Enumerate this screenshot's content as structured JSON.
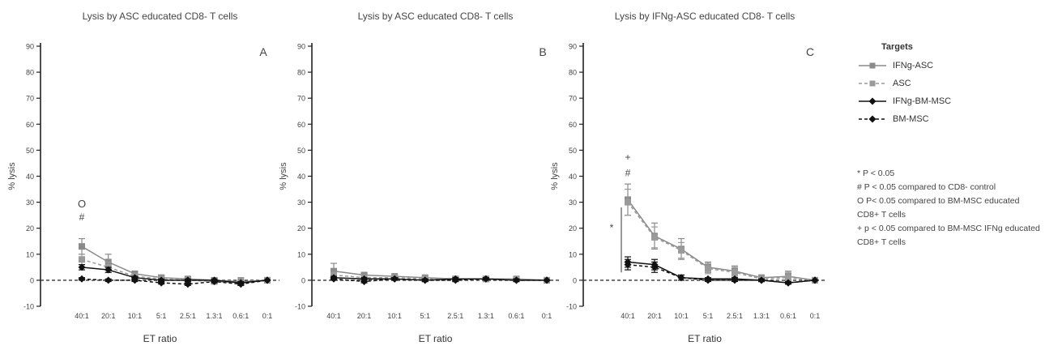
{
  "chart_data": [
    {
      "type": "line",
      "panel_letter": "A",
      "title": "Lysis by ASC educated CD8- T cells",
      "xlabel": "ET ratio",
      "ylabel": "% lysis",
      "categories": [
        "40:1",
        "20:1",
        "10:1",
        "5:1",
        "2.5:1",
        "1.3:1",
        "0.6:1",
        "0:1"
      ],
      "ylim": [
        -10,
        90
      ],
      "yticks": [
        -10,
        0,
        10,
        20,
        30,
        40,
        50,
        60,
        70,
        80,
        90
      ],
      "series": [
        {
          "name": "IFNg-ASC",
          "values": [
            13,
            7,
            2.5,
            1,
            0.5,
            0,
            -0.5,
            0
          ],
          "errors": [
            3,
            3,
            1,
            1,
            1,
            1,
            1.5,
            0
          ]
        },
        {
          "name": "ASC",
          "values": [
            8,
            5,
            1.5,
            0.5,
            0,
            -0.5,
            -1,
            0
          ],
          "errors": [
            2,
            2,
            1,
            1,
            1,
            1,
            1,
            0
          ]
        },
        {
          "name": "IFNg-BM-MSC",
          "values": [
            5,
            4,
            1,
            0,
            0,
            0,
            -1,
            0
          ],
          "errors": [
            1,
            1,
            0.5,
            0.5,
            0.5,
            0.5,
            0.5,
            0
          ]
        },
        {
          "name": "BM-MSC",
          "values": [
            0.5,
            0,
            0,
            -1,
            -1.5,
            -0.5,
            -1.5,
            0
          ],
          "errors": [
            0.5,
            0.5,
            0.5,
            0.5,
            0.5,
            0.5,
            0.5,
            0
          ]
        }
      ],
      "annotations": [
        {
          "text": "O",
          "category": "40:1",
          "y": 28
        },
        {
          "text": "#",
          "category": "40:1",
          "y": 23
        }
      ]
    },
    {
      "type": "line",
      "panel_letter": "B",
      "title": "Lysis by ASC educated CD8- T cells",
      "xlabel": "ET ratio",
      "ylabel": "% lysis",
      "categories": [
        "40:1",
        "20:1",
        "10:1",
        "5:1",
        "2.5:1",
        "1.3:1",
        "0.6:1",
        "0:1"
      ],
      "ylim": [
        -10,
        90
      ],
      "yticks": [
        -10,
        0,
        10,
        20,
        30,
        40,
        50,
        60,
        70,
        80,
        90
      ],
      "series": [
        {
          "name": "IFNg-ASC",
          "values": [
            3.5,
            2,
            1.5,
            1,
            0.5,
            0.5,
            0.5,
            0
          ],
          "errors": [
            3,
            1,
            0.5,
            0.5,
            0.5,
            0.5,
            0.5,
            0
          ]
        },
        {
          "name": "ASC",
          "values": [
            2,
            1,
            1,
            0.5,
            0.5,
            0.5,
            0.5,
            0
          ],
          "errors": [
            1,
            1,
            0.5,
            0.5,
            0.5,
            0.5,
            0.5,
            0
          ]
        },
        {
          "name": "IFNg-BM-MSC",
          "values": [
            1,
            0.5,
            0.5,
            0,
            0.5,
            0.5,
            0,
            0
          ],
          "errors": [
            0.5,
            0.5,
            0.5,
            0.5,
            0.5,
            0.5,
            0.5,
            0
          ]
        },
        {
          "name": "BM-MSC",
          "values": [
            0.5,
            -0.5,
            0.5,
            0,
            0,
            0.5,
            0,
            0
          ],
          "errors": [
            0.5,
            0.5,
            0.5,
            0.5,
            0.5,
            0.5,
            0.5,
            0
          ]
        }
      ],
      "annotations": []
    },
    {
      "type": "line",
      "panel_letter": "C",
      "title": "Lysis by IFNg-ASC educated CD8- T cells",
      "xlabel": "ET ratio",
      "ylabel": "% lysis",
      "categories": [
        "40:1",
        "20:1",
        "10:1",
        "5:1",
        "2.5:1",
        "1.3:1",
        "0.6:1",
        "0:1"
      ],
      "ylim": [
        -10,
        90
      ],
      "yticks": [
        -10,
        0,
        10,
        20,
        30,
        40,
        50,
        60,
        70,
        80,
        90
      ],
      "series": [
        {
          "name": "IFNg-ASC",
          "values": [
            31,
            17,
            12,
            5,
            3.5,
            1,
            1.5,
            0
          ],
          "errors": [
            6,
            5,
            4,
            2,
            2,
            1,
            2,
            0
          ]
        },
        {
          "name": "ASC",
          "values": [
            30,
            16.5,
            11.5,
            4.5,
            3,
            0.5,
            1,
            0
          ],
          "errors": [
            5,
            4,
            3,
            2,
            2,
            1,
            2,
            0
          ]
        },
        {
          "name": "IFNg-BM-MSC",
          "values": [
            7,
            6,
            1,
            0.5,
            0.5,
            0,
            -1,
            0
          ],
          "errors": [
            2,
            2,
            1,
            0.5,
            0.5,
            0.5,
            0.5,
            0
          ]
        },
        {
          "name": "BM-MSC",
          "values": [
            6,
            5,
            1,
            0,
            0,
            0,
            -1,
            0
          ],
          "errors": [
            2,
            2,
            1,
            0.5,
            0.5,
            0.5,
            0.5,
            0
          ]
        }
      ],
      "annotations": [
        {
          "text": "+",
          "category": "40:1",
          "y": 46
        },
        {
          "text": "#",
          "category": "40:1",
          "y": 40
        },
        {
          "text": "*",
          "category": "20:1",
          "y": 19,
          "bracket": true
        }
      ]
    }
  ],
  "legend": {
    "title": "Targets",
    "items": [
      {
        "name": "IFNg-ASC",
        "color": "#8a8a8a",
        "marker": "square",
        "dash": "solid"
      },
      {
        "name": "ASC",
        "color": "#9a9a9a",
        "marker": "square",
        "dash": "dashed"
      },
      {
        "name": "IFNg-BM-MSC",
        "color": "#111111",
        "marker": "diamond",
        "dash": "solid"
      },
      {
        "name": "BM-MSC",
        "color": "#111111",
        "marker": "diamond",
        "dash": "dashed"
      }
    ]
  },
  "notes": [
    "* P < 0.05",
    "# P < 0.05 compared to CD8- control",
    "O P< 0.05 compared to BM-MSC educated CD8+ T cells",
    "+ p < 0.05 compared to BM-MSC IFNg educated CD8+ T cells"
  ]
}
